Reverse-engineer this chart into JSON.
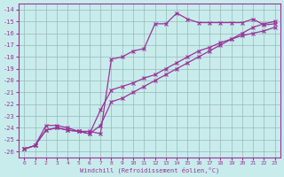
{
  "xlabel": "Windchill (Refroidissement éolien,°C)",
  "bg_color": "#c8ecec",
  "grid_color": "#9ab8b8",
  "line_color": "#993399",
  "xlim": [
    -0.5,
    23.5
  ],
  "ylim": [
    -26.5,
    -13.5
  ],
  "xticks": [
    0,
    1,
    2,
    3,
    4,
    5,
    6,
    7,
    8,
    9,
    10,
    11,
    12,
    13,
    14,
    15,
    16,
    17,
    18,
    19,
    20,
    21,
    22,
    23
  ],
  "yticks": [
    -26,
    -25,
    -24,
    -23,
    -22,
    -21,
    -20,
    -19,
    -18,
    -17,
    -16,
    -15,
    -14
  ],
  "line1_x": [
    0,
    1,
    2,
    3,
    4,
    5,
    6,
    7,
    8,
    9,
    10,
    11,
    12,
    13,
    14,
    15,
    16,
    17,
    18,
    19,
    20,
    21,
    22,
    23
  ],
  "line1_y": [
    -25.8,
    -25.5,
    -23.8,
    -23.8,
    -24.0,
    -24.3,
    -24.3,
    -24.5,
    -18.2,
    -18.0,
    -17.5,
    -17.3,
    -15.2,
    -15.2,
    -14.3,
    -14.8,
    -15.1,
    -15.1,
    -15.1,
    -15.1,
    -15.1,
    -14.8,
    -15.3,
    -15.2
  ],
  "line2_x": [
    0,
    1,
    2,
    3,
    4,
    5,
    6,
    7,
    8,
    9,
    10,
    11,
    12,
    13,
    14,
    15,
    16,
    17,
    18,
    19,
    20,
    21,
    22,
    23
  ],
  "line2_y": [
    -25.8,
    -25.5,
    -24.2,
    -24.0,
    -24.2,
    -24.3,
    -24.5,
    -22.5,
    -20.8,
    -20.5,
    -20.2,
    -19.8,
    -19.5,
    -19.0,
    -18.5,
    -18.0,
    -17.5,
    -17.2,
    -16.8,
    -16.5,
    -16.2,
    -16.0,
    -15.8,
    -15.5
  ],
  "line3_x": [
    0,
    1,
    2,
    3,
    4,
    5,
    6,
    7,
    8,
    9,
    10,
    11,
    12,
    13,
    14,
    15,
    16,
    17,
    18,
    19,
    20,
    21,
    22,
    23
  ],
  "line3_y": [
    -25.8,
    -25.5,
    -24.2,
    -24.0,
    -24.2,
    -24.3,
    -24.5,
    -23.8,
    -21.8,
    -21.5,
    -21.0,
    -20.5,
    -20.0,
    -19.5,
    -19.0,
    -18.5,
    -18.0,
    -17.5,
    -17.0,
    -16.5,
    -16.0,
    -15.5,
    -15.2,
    -15.0
  ]
}
